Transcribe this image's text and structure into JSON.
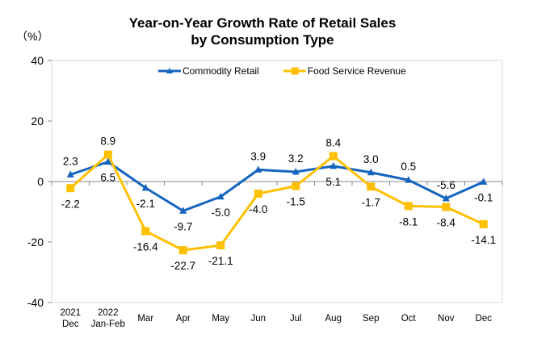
{
  "chart_data": {
    "type": "line",
    "title": [
      "Year-on-Year Growth Rate of Retail Sales",
      "by Consumption Type"
    ],
    "ylabel": "（%）",
    "ylim": [
      -40,
      40
    ],
    "yticks": [
      "40",
      "20",
      "0",
      "-20",
      "-40"
    ],
    "categories": [
      [
        "2021",
        "Dec"
      ],
      [
        "2022",
        "Jan-Feb"
      ],
      [
        "Mar"
      ],
      [
        "Apr"
      ],
      [
        "May"
      ],
      [
        "Jun"
      ],
      [
        "Jul"
      ],
      [
        "Aug"
      ],
      [
        "Sep"
      ],
      [
        "Oct"
      ],
      [
        "Nov"
      ],
      [
        "Dec"
      ]
    ],
    "legend_position": "top-center",
    "series": [
      {
        "name": "Commodity Retail",
        "color": "#1565C0",
        "marker": "triangle",
        "values": [
          2.3,
          6.5,
          -2.1,
          -9.7,
          -5.0,
          3.9,
          3.2,
          5.1,
          3.0,
          0.5,
          -5.6,
          -0.1
        ],
        "labels": [
          "2.3",
          "6.5",
          "-2.1",
          "-9.7",
          "-5.0",
          "3.9",
          "3.2",
          "5.1",
          "3.0",
          "0.5",
          "-5.6",
          "-0.1"
        ]
      },
      {
        "name": "Food Service Revenue",
        "color": "#FFC000",
        "marker": "square",
        "values": [
          -2.2,
          8.9,
          -16.4,
          -22.7,
          -21.1,
          -4.0,
          -1.5,
          8.4,
          -1.7,
          -8.1,
          -8.4,
          -14.1
        ],
        "labels": [
          "-2.2",
          "8.9",
          "-16.4",
          "-22.7",
          "-21.1",
          "-4.0",
          "-1.5",
          "8.4",
          "-1.7",
          "-8.1",
          "-8.4",
          "-14.1"
        ]
      }
    ]
  }
}
